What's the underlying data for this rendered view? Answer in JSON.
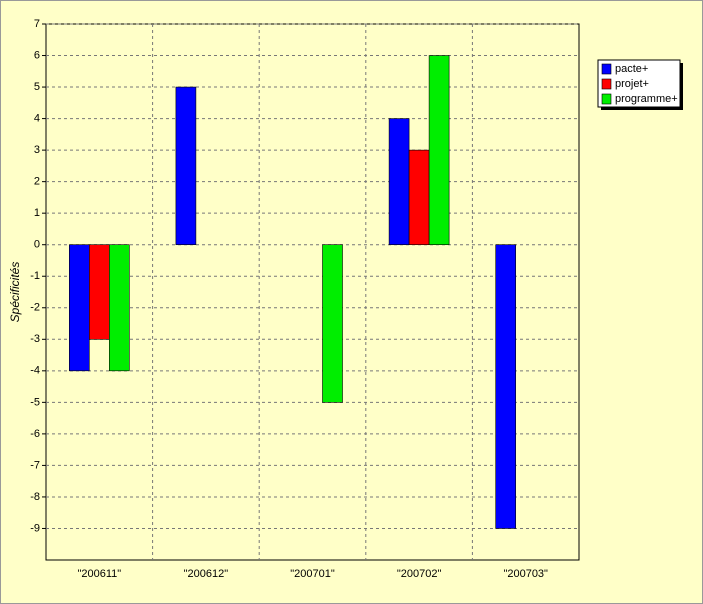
{
  "chart_data": {
    "type": "bar",
    "y_label": "Spécificités",
    "categories": [
      "\"200611\"",
      "\"200612\"",
      "\"200701\"",
      "\"200702\"",
      "\"200703\""
    ],
    "series": [
      {
        "name": "pacte+",
        "color": "#0000ff",
        "values": [
          -4,
          5,
          0,
          4,
          -9
        ]
      },
      {
        "name": "projet+",
        "color": "#ff0000",
        "values": [
          -3,
          0,
          0,
          3,
          0
        ]
      },
      {
        "name": "programme+",
        "color": "#00ee00",
        "values": [
          -4,
          0,
          -5,
          6,
          0
        ]
      }
    ],
    "ylim": [
      -10,
      7
    ],
    "yticks": [
      -9,
      -8,
      -7,
      -6,
      -5,
      -4,
      -3,
      -2,
      -1,
      0,
      1,
      2,
      3,
      4,
      5,
      6,
      7
    ],
    "grid": true
  }
}
